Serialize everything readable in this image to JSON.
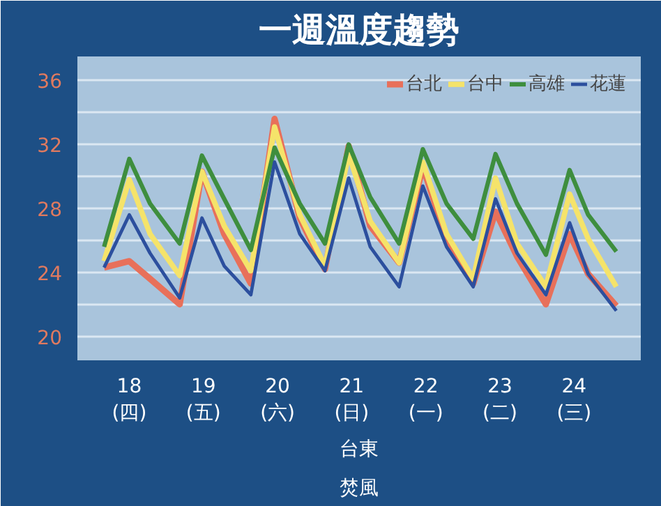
{
  "chart_data": {
    "type": "line",
    "title": "一週溫度趨勢",
    "x": [
      17.66,
      18.0,
      18.28,
      18.68,
      18.98,
      19.28,
      19.64,
      19.96,
      20.3,
      20.64,
      20.96,
      21.25,
      21.64,
      21.96,
      22.28,
      22.64,
      22.94,
      23.23,
      23.62,
      23.94,
      24.19,
      24.57
    ],
    "series": [
      {
        "name": "台北",
        "color": "#e8705a",
        "values": [
          24.3,
          24.7,
          23.6,
          22.0,
          30.3,
          26.4,
          23.3,
          33.6,
          27.4,
          24.2,
          31.9,
          26.9,
          24.6,
          30.6,
          26.1,
          23.3,
          27.8,
          25.0,
          22.0,
          26.4,
          23.9,
          21.9
        ]
      },
      {
        "name": "台中",
        "color": "#f5e36a",
        "values": [
          24.7,
          29.8,
          26.4,
          23.8,
          30.3,
          26.9,
          24.1,
          33.1,
          27.6,
          24.4,
          31.4,
          27.2,
          24.6,
          30.9,
          26.4,
          23.6,
          29.9,
          25.8,
          23.1,
          28.9,
          26.1,
          23.1
        ]
      },
      {
        "name": "高雄",
        "color": "#3e8e3e",
        "values": [
          25.6,
          31.1,
          28.3,
          25.8,
          31.3,
          28.6,
          25.4,
          31.8,
          28.3,
          25.8,
          32.0,
          28.7,
          25.8,
          31.7,
          28.3,
          26.1,
          31.4,
          28.3,
          25.1,
          30.4,
          27.6,
          25.3
        ]
      },
      {
        "name": "花蓮",
        "color": "#2c4f9e",
        "values": [
          24.3,
          27.6,
          25.2,
          22.4,
          27.4,
          24.4,
          22.6,
          30.9,
          26.4,
          24.1,
          29.9,
          25.6,
          23.1,
          29.4,
          25.6,
          23.1,
          28.6,
          25.2,
          22.6,
          27.1,
          23.9,
          21.6
        ]
      }
    ],
    "xlim": [
      17.3,
      24.9
    ],
    "xticks": [
      {
        "value": 18,
        "label": "18\n(四)"
      },
      {
        "value": 19,
        "label": "19\n(五)"
      },
      {
        "value": 20,
        "label": "20\n(六)"
      },
      {
        "value": 21,
        "label": "21\n(日)"
      },
      {
        "value": 22,
        "label": "22\n(一)"
      },
      {
        "value": 23,
        "label": "23\n(二)"
      },
      {
        "value": 24,
        "label": "24\n(三)"
      }
    ],
    "ylim": [
      18.5,
      37.5
    ],
    "yticks": [
      20,
      {
        "value": 22,
        "label": null
      },
      24,
      {
        "value": 26,
        "label": null
      },
      28,
      {
        "value": 30,
        "label": null
      },
      32,
      {
        "value": 34,
        "label": null
      },
      36
    ],
    "grid": "y",
    "legend": "top right",
    "marker": "none",
    "line_style": "solid",
    "annotations": [
      "台東",
      "焚風"
    ]
  }
}
